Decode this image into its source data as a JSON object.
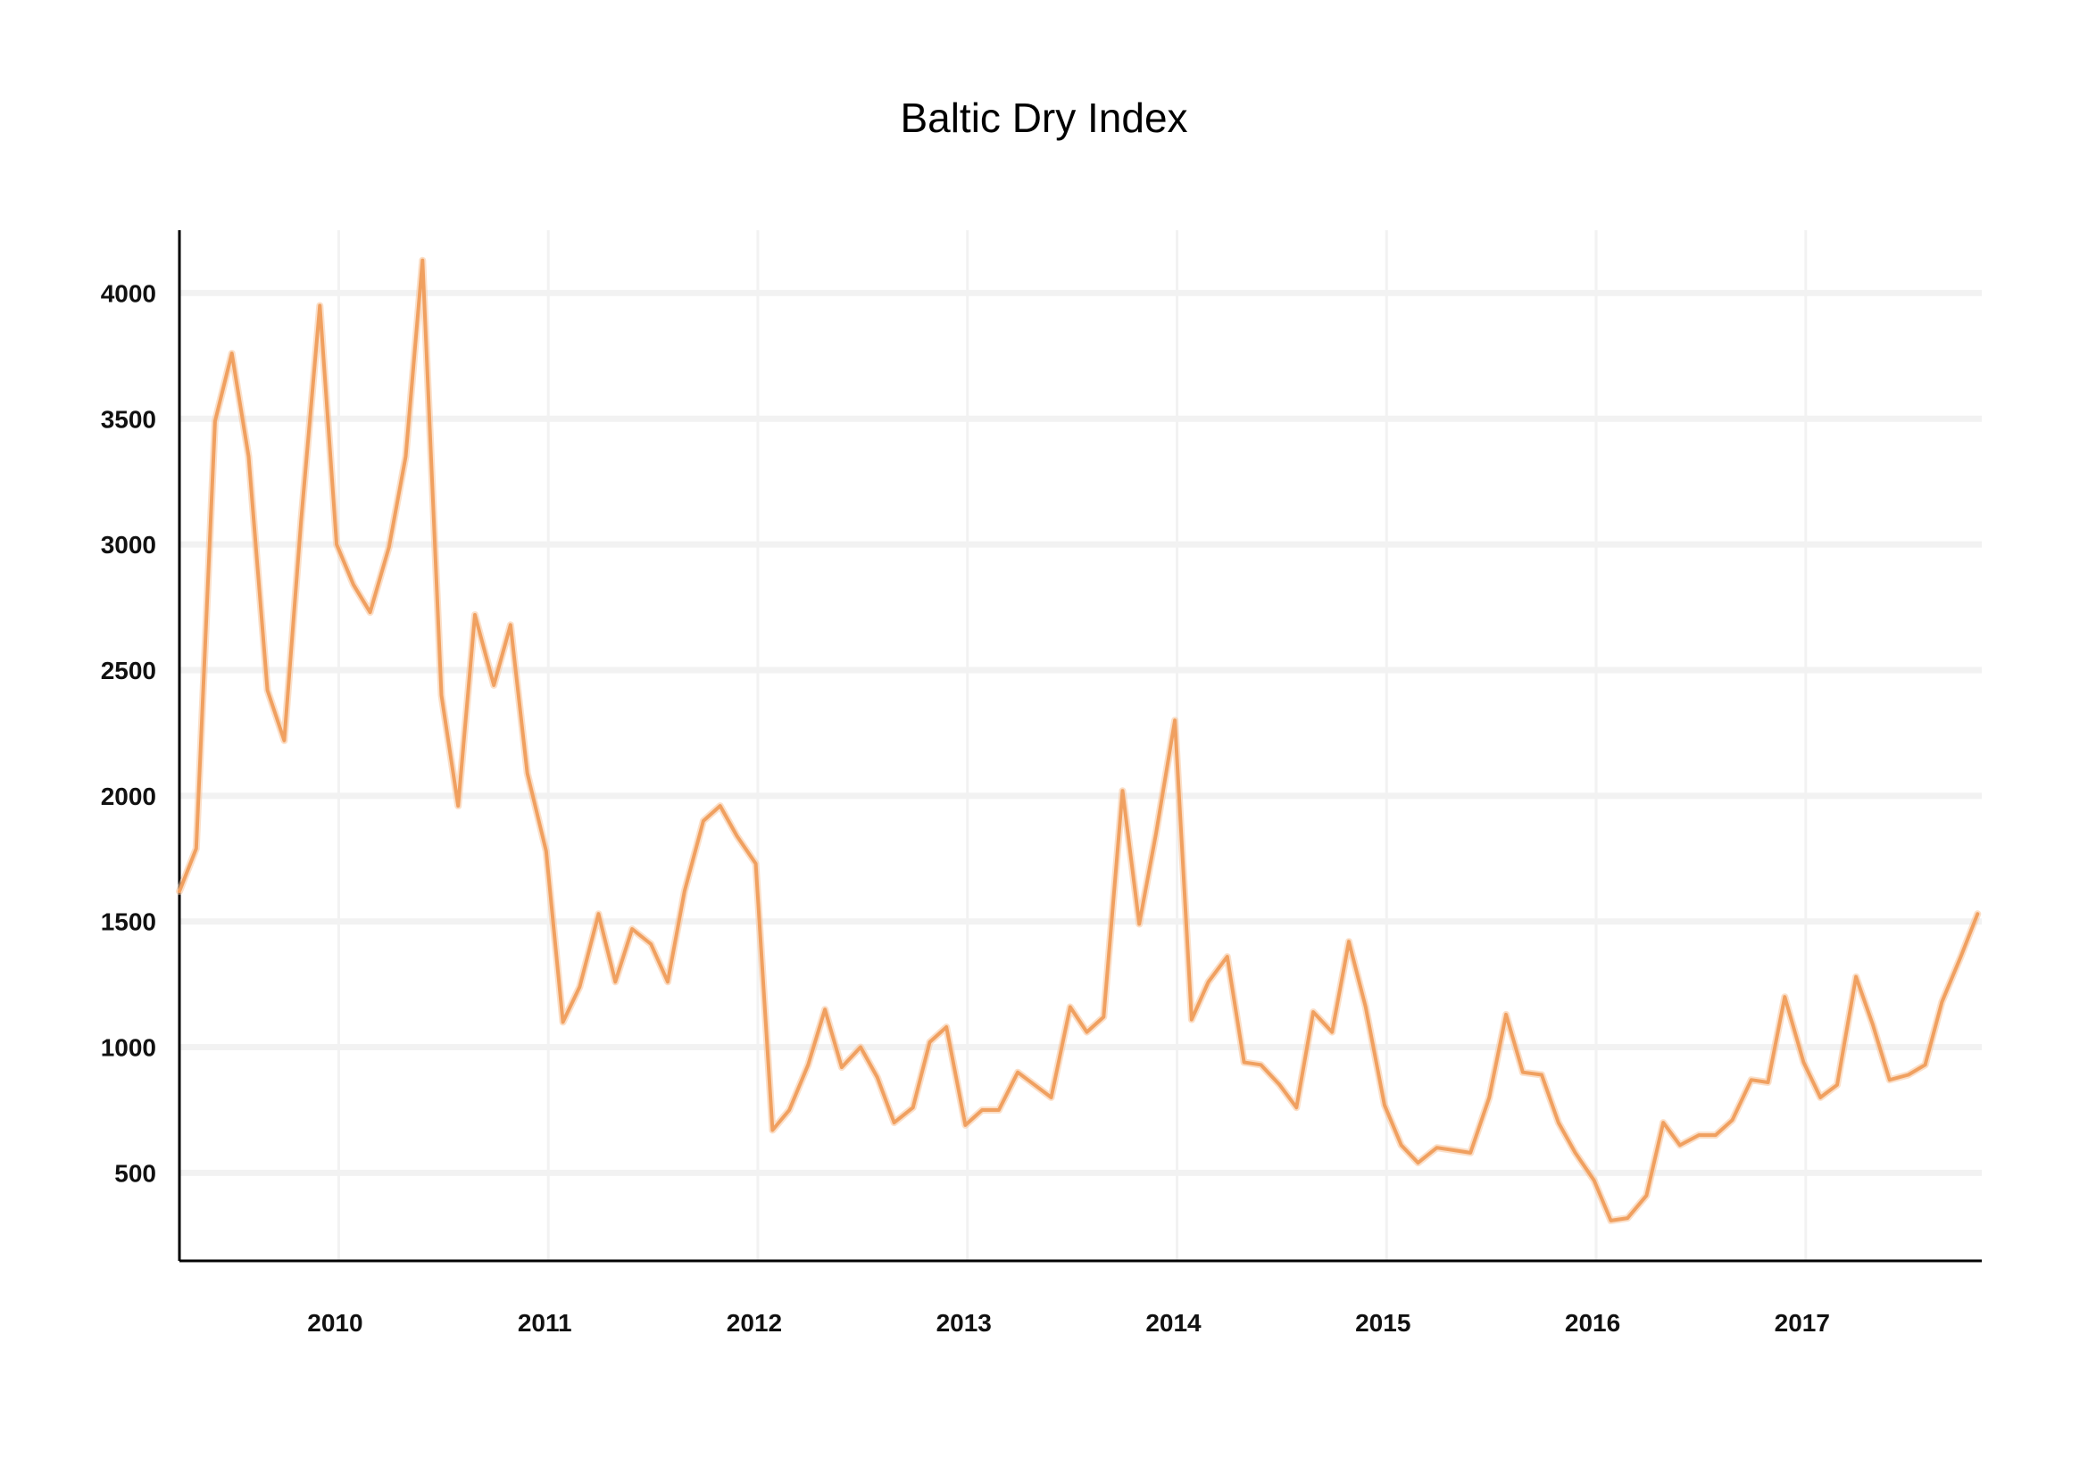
{
  "chart_data": {
    "type": "line",
    "title": "Baltic Dry Index",
    "xlabel": "",
    "ylabel": "",
    "x_tick_labels": [
      "2010",
      "2011",
      "2012",
      "2013",
      "2014",
      "2015",
      "2016",
      "2017"
    ],
    "y_tick_labels": [
      "500",
      "1000",
      "1500",
      "2000",
      "2500",
      "3000",
      "3500",
      "4000"
    ],
    "y_ticks": [
      500,
      1000,
      1500,
      2000,
      2500,
      3000,
      3500,
      4000
    ],
    "xlim": [
      2009.24,
      2017.84
    ],
    "ylim": [
      150,
      4250
    ],
    "grid": true,
    "legend": "none",
    "series": [
      {
        "color": "#f0a060",
        "x": [
          2009.24,
          2009.32,
          2009.41,
          2009.49,
          2009.57,
          2009.66,
          2009.74,
          2009.82,
          2009.91,
          2009.99,
          2010.07,
          2010.15,
          2010.24,
          2010.32,
          2010.4,
          2010.49,
          2010.57,
          2010.65,
          2010.74,
          2010.82,
          2010.9,
          2010.99,
          2011.07,
          2011.15,
          2011.24,
          2011.32,
          2011.4,
          2011.49,
          2011.57,
          2011.65,
          2011.74,
          2011.82,
          2011.9,
          2011.99,
          2012.07,
          2012.15,
          2012.24,
          2012.32,
          2012.4,
          2012.49,
          2012.57,
          2012.65,
          2012.74,
          2012.82,
          2012.9,
          2012.99,
          2013.07,
          2013.15,
          2013.24,
          2013.32,
          2013.4,
          2013.49,
          2013.57,
          2013.65,
          2013.74,
          2013.82,
          2013.9,
          2013.99,
          2014.07,
          2014.15,
          2014.24,
          2014.32,
          2014.4,
          2014.49,
          2014.57,
          2014.65,
          2014.74,
          2014.82,
          2014.9,
          2014.99,
          2015.07,
          2015.15,
          2015.24,
          2015.32,
          2015.4,
          2015.49,
          2015.57,
          2015.65,
          2015.74,
          2015.82,
          2015.9,
          2015.99,
          2016.07,
          2016.15,
          2016.24,
          2016.32,
          2016.4,
          2016.49,
          2016.57,
          2016.65,
          2016.74,
          2016.82,
          2016.9,
          2016.99,
          2017.07,
          2017.15,
          2017.24,
          2017.32,
          2017.4,
          2017.49,
          2017.57,
          2017.65,
          2017.74,
          2017.82
        ],
        "y": [
          1620,
          1790,
          3490,
          3760,
          3350,
          2420,
          2220,
          3090,
          3950,
          3000,
          2840,
          2730,
          2990,
          3350,
          4130,
          2400,
          1960,
          2720,
          2440,
          2680,
          2090,
          1780,
          1100,
          1240,
          1530,
          1260,
          1470,
          1410,
          1260,
          1620,
          1900,
          1960,
          1840,
          1730,
          670,
          750,
          930,
          1150,
          920,
          1000,
          880,
          700,
          760,
          1020,
          1080,
          690,
          750,
          750,
          900,
          850,
          800,
          1160,
          1060,
          1120,
          2020,
          1490,
          1850,
          2300,
          1110,
          1260,
          1360,
          940,
          930,
          850,
          760,
          1140,
          1060,
          1420,
          1160,
          770,
          610,
          540,
          600,
          590,
          580,
          800,
          1130,
          900,
          890,
          700,
          580,
          470,
          310,
          320,
          410,
          700,
          610,
          650,
          650,
          710,
          870,
          860,
          1200,
          940,
          800,
          850,
          1280,
          1090,
          870,
          890,
          930,
          1180,
          1360,
          1530
        ]
      }
    ]
  }
}
